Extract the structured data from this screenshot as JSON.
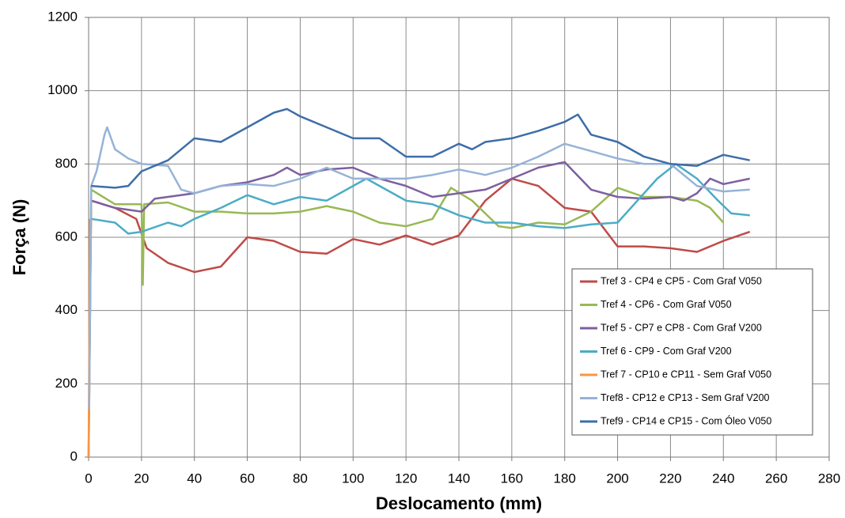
{
  "chart_data": {
    "type": "line",
    "xlabel": "Deslocamento (mm)",
    "ylabel": "Força (N)",
    "xlim": [
      0,
      280
    ],
    "ylim": [
      0,
      1200
    ],
    "xticks": [
      0,
      20,
      40,
      60,
      80,
      100,
      120,
      140,
      160,
      180,
      200,
      220,
      240,
      260,
      280
    ],
    "yticks": [
      0,
      200,
      400,
      600,
      800,
      1000,
      1200
    ],
    "grid": true,
    "legend": "lower right",
    "series": [
      {
        "name": "Tref 3 - CP4 e CP5 - Com Graf V050",
        "color": "#be4b48",
        "x": [
          0,
          1,
          10,
          18,
          22,
          30,
          40,
          50,
          60,
          70,
          80,
          90,
          100,
          110,
          120,
          130,
          140,
          150,
          160,
          170,
          180,
          190,
          200,
          210,
          220,
          230,
          240,
          250
        ],
        "values": [
          0,
          700,
          680,
          650,
          570,
          530,
          505,
          520,
          600,
          590,
          560,
          555,
          595,
          580,
          605,
          580,
          605,
          700,
          760,
          740,
          680,
          670,
          575,
          575,
          570,
          560,
          590,
          615
        ]
      },
      {
        "name": "Tref 4 - CP6 - Com Graf V050",
        "color": "#98b954",
        "x": [
          0,
          1,
          10,
          20,
          20.5,
          21,
          30,
          40,
          50,
          60,
          70,
          80,
          90,
          100,
          110,
          120,
          130,
          137,
          145,
          155,
          160,
          170,
          180,
          190,
          200,
          210,
          220,
          230,
          235,
          240
        ],
        "values": [
          0,
          730,
          690,
          690,
          470,
          690,
          695,
          670,
          670,
          665,
          665,
          670,
          685,
          670,
          640,
          630,
          650,
          735,
          700,
          630,
          625,
          640,
          635,
          670,
          735,
          710,
          710,
          700,
          680,
          640
        ]
      },
      {
        "name": "Tref 5 - CP7 e CP8 - Com Graf V200",
        "color": "#7d5fa0",
        "x": [
          1,
          10,
          20,
          25,
          40,
          50,
          60,
          70,
          75,
          80,
          90,
          100,
          110,
          120,
          130,
          140,
          150,
          160,
          170,
          180,
          190,
          200,
          210,
          220,
          225,
          230,
          235,
          240,
          250
        ],
        "values": [
          700,
          680,
          670,
          705,
          720,
          740,
          750,
          770,
          790,
          770,
          785,
          790,
          760,
          740,
          710,
          720,
          730,
          760,
          790,
          805,
          730,
          710,
          705,
          710,
          700,
          720,
          760,
          745,
          760
        ]
      },
      {
        "name": "Tref 6 - CP9 - Com Graf V200",
        "color": "#4bacc6",
        "x": [
          1,
          10,
          15,
          20,
          30,
          35,
          40,
          50,
          60,
          70,
          80,
          90,
          100,
          105,
          115,
          120,
          130,
          140,
          150,
          160,
          170,
          180,
          190,
          200,
          205,
          215,
          222,
          230,
          238,
          243,
          250
        ],
        "values": [
          650,
          640,
          610,
          615,
          640,
          630,
          650,
          680,
          715,
          690,
          710,
          700,
          740,
          760,
          720,
          700,
          690,
          660,
          640,
          640,
          630,
          625,
          635,
          640,
          680,
          760,
          800,
          760,
          700,
          665,
          660
        ]
      },
      {
        "name": "Tref 7 - CP10 e CP11 - Sem Graf V050",
        "color": "#f79646",
        "x": [
          0,
          0.5
        ],
        "values": [
          0,
          650
        ]
      },
      {
        "name": "Tref8 - CP12 e CP13 - Sem Graf V200",
        "color": "#95b3d7",
        "x": [
          0.2,
          1,
          3,
          6,
          7,
          10,
          15,
          20,
          30,
          35,
          40,
          50,
          60,
          70,
          80,
          90,
          100,
          110,
          120,
          130,
          140,
          150,
          160,
          170,
          180,
          190,
          200,
          210,
          220,
          230,
          240,
          250
        ],
        "values": [
          130,
          740,
          780,
          880,
          900,
          840,
          815,
          800,
          795,
          730,
          720,
          740,
          745,
          740,
          760,
          790,
          760,
          760,
          760,
          770,
          785,
          770,
          790,
          820,
          855,
          835,
          815,
          800,
          800,
          740,
          725,
          730
        ]
      },
      {
        "name": "Tref9 - CP14 e CP15 - Com Óleo V050",
        "color": "#3e6ea8",
        "x": [
          1,
          10,
          15,
          20,
          30,
          40,
          50,
          60,
          70,
          75,
          80,
          90,
          100,
          110,
          120,
          130,
          140,
          145,
          150,
          160,
          170,
          180,
          185,
          190,
          200,
          210,
          220,
          230,
          240,
          250
        ],
        "values": [
          740,
          735,
          740,
          780,
          810,
          870,
          860,
          900,
          940,
          950,
          930,
          900,
          870,
          870,
          820,
          820,
          855,
          840,
          860,
          870,
          890,
          915,
          935,
          880,
          860,
          820,
          800,
          795,
          825,
          810
        ]
      }
    ]
  }
}
